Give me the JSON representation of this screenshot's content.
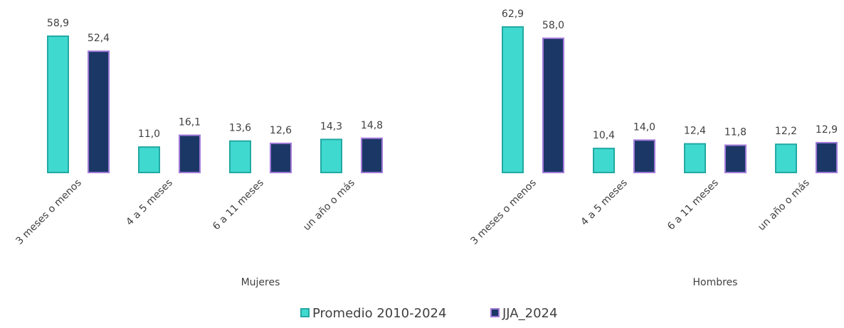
{
  "chart_data": [
    {
      "type": "bar",
      "title": "Mujeres",
      "categories": [
        "3 meses o menos",
        "4 a 5 meses",
        "6 a 11 meses",
        "un año o más"
      ],
      "series": [
        {
          "values": [
            58.9,
            11.0,
            13.6,
            14.3
          ],
          "value_labels": [
            "58,9",
            "11,0",
            "13,6",
            "14,3"
          ]
        },
        {
          "values": [
            52.4,
            16.1,
            12.6,
            14.8
          ],
          "value_labels": [
            "52,4",
            "16,1",
            "12,6",
            "14,8"
          ]
        }
      ]
    },
    {
      "type": "bar",
      "title": "Hombres",
      "categories": [
        "3 meses o menos",
        "4 a 5 meses",
        "6 a 11 meses",
        "un año o más"
      ],
      "series": [
        {
          "values": [
            62.9,
            10.4,
            12.4,
            12.2
          ],
          "value_labels": [
            "62,9",
            "10,4",
            "12,4",
            "12,2"
          ]
        },
        {
          "values": [
            58.0,
            14.0,
            11.8,
            12.9
          ],
          "value_labels": [
            "58,0",
            "14,0",
            "11,8",
            "12,9"
          ]
        }
      ]
    }
  ],
  "legend": [
    {
      "name": "Promedio 2010-2024",
      "color": "#40d9d0",
      "stroke": "#22a9a3"
    },
    {
      "name": "JJA_2024",
      "color": "#1b3766",
      "stroke": "#a07ad8"
    }
  ]
}
